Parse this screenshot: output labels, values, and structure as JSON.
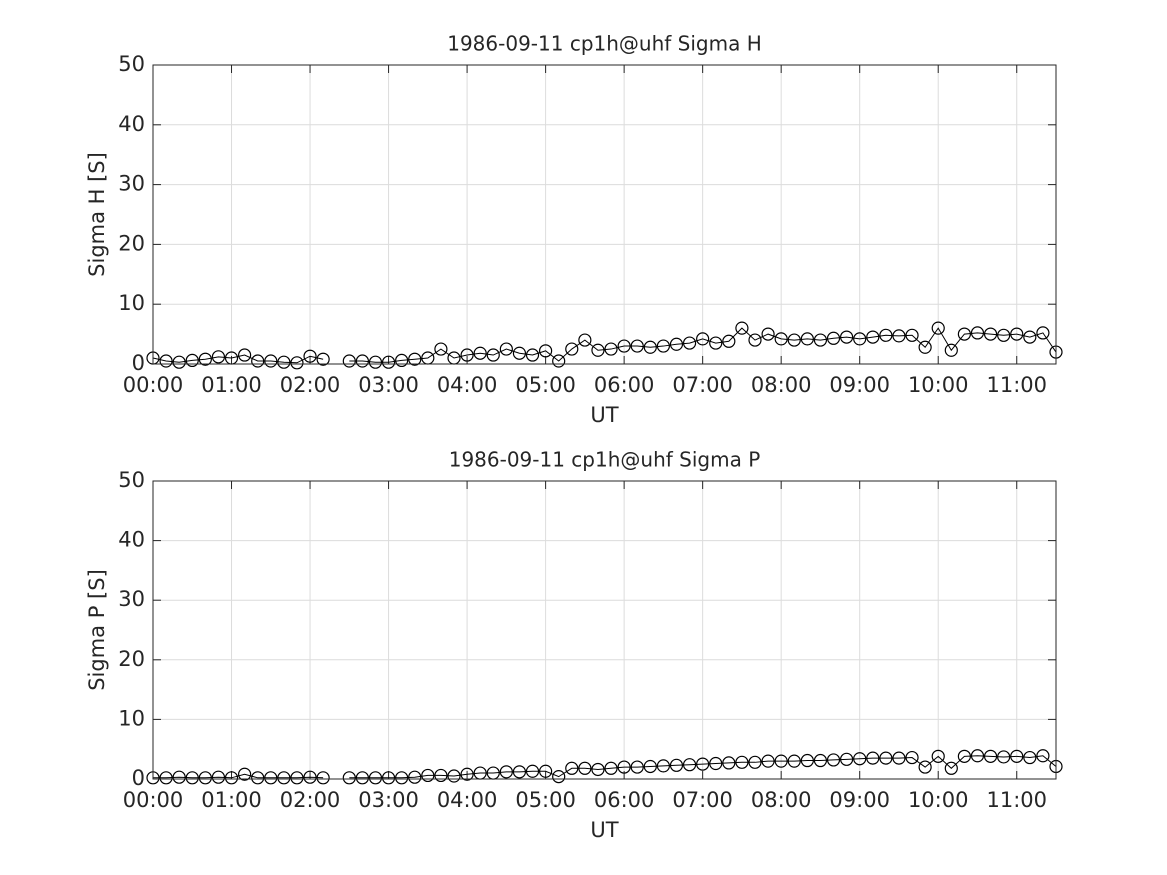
{
  "chart_data": [
    {
      "type": "line",
      "title": "1986-09-11  cp1h@uhf Sigma H",
      "xlabel": "UT",
      "ylabel": "Sigma H [S]",
      "x": [
        0,
        10,
        20,
        30,
        40,
        50,
        60,
        70,
        80,
        90,
        100,
        110,
        120,
        130,
        140,
        150,
        160,
        170,
        180,
        190,
        200,
        210,
        220,
        230,
        240,
        250,
        260,
        270,
        280,
        290,
        300,
        310,
        320,
        330,
        340,
        350,
        360,
        370,
        380,
        390,
        400,
        410,
        420,
        430,
        440,
        450,
        460,
        470,
        480,
        490,
        500,
        510,
        520,
        530,
        540,
        550,
        560,
        570,
        580,
        590,
        600,
        610,
        620,
        630,
        640,
        650,
        660,
        670,
        680,
        690
      ],
      "series": [
        {
          "color": "#000000",
          "marker": "circle",
          "values": [
            1.0,
            0.5,
            0.3,
            0.6,
            0.8,
            1.2,
            1.0,
            1.5,
            0.5,
            0.5,
            0.3,
            0.2,
            1.3,
            0.8,
            null,
            0.5,
            0.5,
            0.3,
            0.3,
            0.6,
            0.8,
            1.0,
            2.5,
            1.0,
            1.5,
            1.8,
            1.5,
            2.5,
            1.8,
            1.5,
            2.2,
            0.5,
            2.5,
            4.0,
            2.3,
            2.5,
            3.0,
            3.0,
            2.8,
            3.0,
            3.3,
            3.5,
            4.2,
            3.5,
            3.8,
            6.0,
            4.0,
            5.0,
            4.2,
            4.0,
            4.2,
            4.0,
            4.3,
            4.5,
            4.2,
            4.5,
            4.8,
            4.7,
            4.8,
            2.8,
            6.0,
            2.3,
            5.0,
            5.2,
            5.0,
            4.8,
            5.0,
            4.5,
            5.2,
            2.0
          ]
        }
      ],
      "xlim": [
        0,
        690
      ],
      "xticks": [
        {
          "value": 0,
          "label": "00:00"
        },
        {
          "value": 60,
          "label": "01:00"
        },
        {
          "value": 120,
          "label": "02:00"
        },
        {
          "value": 180,
          "label": "03:00"
        },
        {
          "value": 240,
          "label": "04:00"
        },
        {
          "value": 300,
          "label": "05:00"
        },
        {
          "value": 360,
          "label": "06:00"
        },
        {
          "value": 420,
          "label": "07:00"
        },
        {
          "value": 480,
          "label": "08:00"
        },
        {
          "value": 540,
          "label": "09:00"
        },
        {
          "value": 600,
          "label": "10:00"
        },
        {
          "value": 660,
          "label": "11:00"
        }
      ],
      "ylim": [
        0,
        50
      ],
      "yticks": [
        0,
        10,
        20,
        30,
        40,
        50
      ],
      "grid": true
    },
    {
      "type": "line",
      "title": "1986-09-11  cp1h@uhf Sigma P",
      "xlabel": "UT",
      "ylabel": "Sigma P [S]",
      "x": [
        0,
        10,
        20,
        30,
        40,
        50,
        60,
        70,
        80,
        90,
        100,
        110,
        120,
        130,
        140,
        150,
        160,
        170,
        180,
        190,
        200,
        210,
        220,
        230,
        240,
        250,
        260,
        270,
        280,
        290,
        300,
        310,
        320,
        330,
        340,
        350,
        360,
        370,
        380,
        390,
        400,
        410,
        420,
        430,
        440,
        450,
        460,
        470,
        480,
        490,
        500,
        510,
        520,
        530,
        540,
        550,
        560,
        570,
        580,
        590,
        600,
        610,
        620,
        630,
        640,
        650,
        660,
        670,
        680,
        690
      ],
      "series": [
        {
          "color": "#000000",
          "marker": "circle",
          "values": [
            0.2,
            0.2,
            0.3,
            0.2,
            0.2,
            0.3,
            0.2,
            0.8,
            0.2,
            0.2,
            0.2,
            0.2,
            0.3,
            0.2,
            null,
            0.2,
            0.2,
            0.2,
            0.2,
            0.2,
            0.3,
            0.6,
            0.6,
            0.5,
            0.8,
            1.0,
            1.0,
            1.2,
            1.2,
            1.3,
            1.3,
            0.4,
            1.8,
            1.8,
            1.6,
            1.8,
            2.0,
            2.0,
            2.1,
            2.2,
            2.3,
            2.4,
            2.5,
            2.6,
            2.7,
            2.8,
            2.8,
            3.0,
            3.0,
            3.0,
            3.1,
            3.1,
            3.2,
            3.3,
            3.4,
            3.5,
            3.5,
            3.5,
            3.6,
            2.0,
            3.8,
            1.8,
            3.8,
            3.9,
            3.8,
            3.7,
            3.8,
            3.6,
            3.9,
            2.1
          ]
        }
      ],
      "xlim": [
        0,
        690
      ],
      "xticks": [
        {
          "value": 0,
          "label": "00:00"
        },
        {
          "value": 60,
          "label": "01:00"
        },
        {
          "value": 120,
          "label": "02:00"
        },
        {
          "value": 180,
          "label": "03:00"
        },
        {
          "value": 240,
          "label": "04:00"
        },
        {
          "value": 300,
          "label": "05:00"
        },
        {
          "value": 360,
          "label": "06:00"
        },
        {
          "value": 420,
          "label": "07:00"
        },
        {
          "value": 480,
          "label": "08:00"
        },
        {
          "value": 540,
          "label": "09:00"
        },
        {
          "value": 600,
          "label": "10:00"
        },
        {
          "value": 660,
          "label": "11:00"
        }
      ],
      "ylim": [
        0,
        50
      ],
      "yticks": [
        0,
        10,
        20,
        30,
        40,
        50
      ],
      "grid": true
    }
  ]
}
